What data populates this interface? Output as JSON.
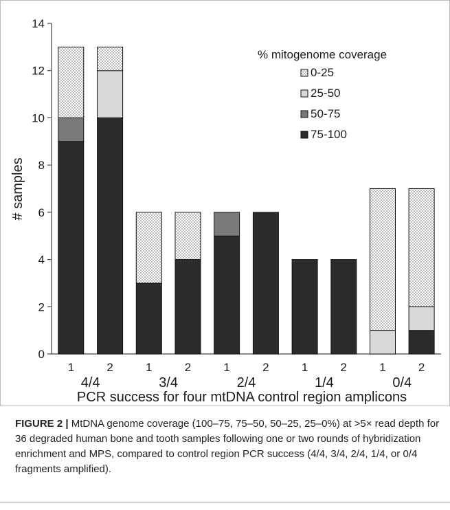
{
  "figure": {
    "caption_lead": "FIGURE 2 |",
    "caption_text": " MtDNA genome coverage (100–75, 75–50, 50–25, 25–0%) at >5× read depth for 36 degraded human bone and tooth samples following one or two rounds of hybridization enrichment and MPS, compared to control region PCR success (4/4, 3/4, 2/4, 1/4, or 0/4 fragments amplified)."
  },
  "chart_data": {
    "type": "bar",
    "stacked": true,
    "title": "",
    "xlabel": "PCR success for four mtDNA control region amplicons",
    "ylabel": "# samples",
    "ylim": [
      0,
      14
    ],
    "yticks": [
      0,
      2,
      4,
      6,
      8,
      10,
      12,
      14
    ],
    "groups": [
      "4/4",
      "3/4",
      "2/4",
      "1/4",
      "0/4"
    ],
    "categories": [
      "1",
      "2",
      "1",
      "2",
      "1",
      "2",
      "1",
      "2",
      "1",
      "2"
    ],
    "legend_title": "% mitogenome coverage",
    "legend_position": "top-right",
    "grid": false,
    "series": [
      {
        "name": "75-100",
        "color": "#2b2b2b",
        "pattern": "solid",
        "values": [
          9,
          10,
          3,
          4,
          5,
          6,
          4,
          4,
          0,
          1
        ]
      },
      {
        "name": "50-75",
        "color": "#7a7a7a",
        "pattern": "solid",
        "values": [
          1,
          0,
          0,
          0,
          1,
          0,
          0,
          0,
          0,
          0
        ]
      },
      {
        "name": "25-50",
        "color": "#d9d9d9",
        "pattern": "solid",
        "values": [
          0,
          2,
          0,
          0,
          0,
          0,
          0,
          0,
          1,
          1
        ]
      },
      {
        "name": "0-25",
        "color": "#ffffff",
        "pattern": "dots",
        "values": [
          3,
          1,
          3,
          2,
          0,
          0,
          0,
          0,
          6,
          5
        ]
      }
    ]
  }
}
